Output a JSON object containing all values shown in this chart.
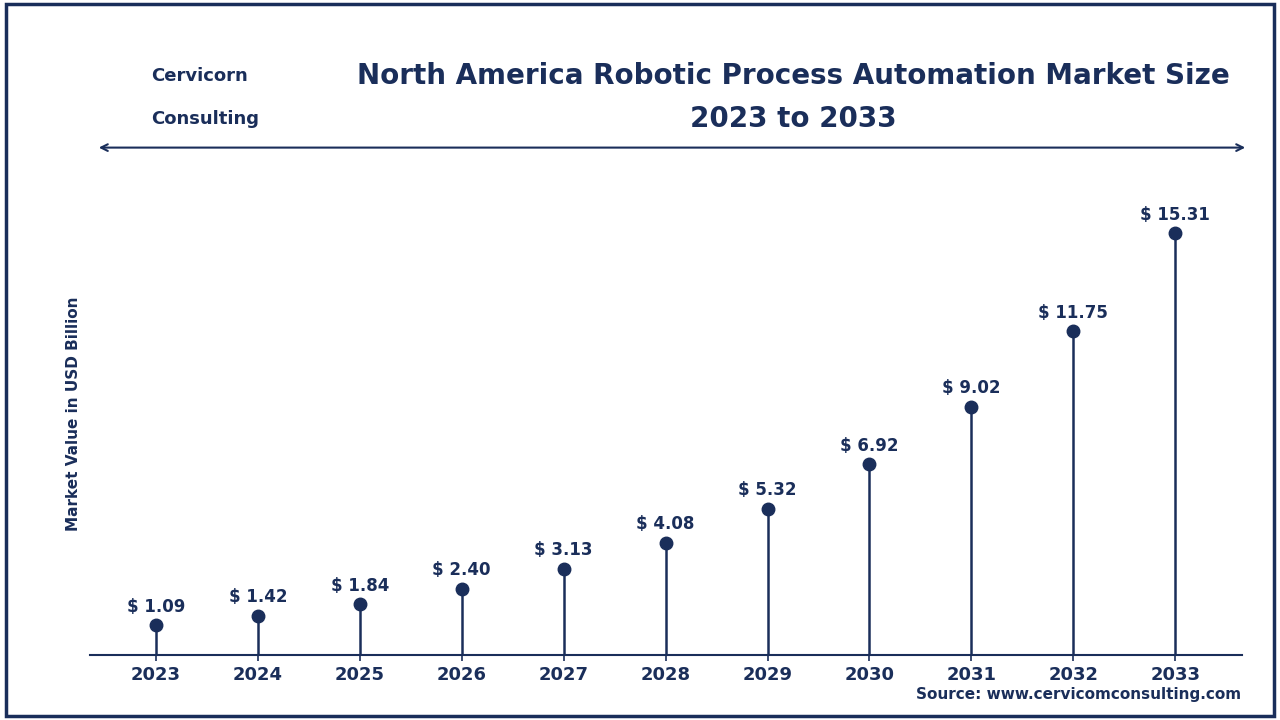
{
  "title_line1": "North America Robotic Process Automation Market Size",
  "title_line2": "2023 to 2033",
  "ylabel": "Market Value in USD Billion",
  "source": "Source: www.cervicomconsulting.com",
  "logo_text1": "Cervicorn",
  "logo_text2": "Consulting",
  "years": [
    2023,
    2024,
    2025,
    2026,
    2027,
    2028,
    2029,
    2030,
    2031,
    2032,
    2033
  ],
  "values": [
    1.09,
    1.42,
    1.84,
    2.4,
    3.13,
    4.08,
    5.32,
    6.92,
    9.02,
    11.75,
    15.31
  ],
  "labels": [
    "$ 1.09",
    "$ 1.42",
    "$ 1.84",
    "$ 2.40",
    "$ 3.13",
    "$ 4.08",
    "$ 5.32",
    "$ 6.92",
    "$ 9.02",
    "$ 11.75",
    "$ 15.31"
  ],
  "stem_color": "#1a2e5a",
  "background_color": "#ffffff",
  "title_color": "#1a2e5a",
  "label_color": "#1a2e5a",
  "axis_color": "#1a2e5a",
  "grid_color": "#d0d0d0",
  "border_color": "#1a2e5a",
  "ylim": [
    0,
    17.5
  ],
  "title_fontsize": 20,
  "label_fontsize": 12,
  "tick_fontsize": 13,
  "ylabel_fontsize": 11,
  "source_fontsize": 11
}
